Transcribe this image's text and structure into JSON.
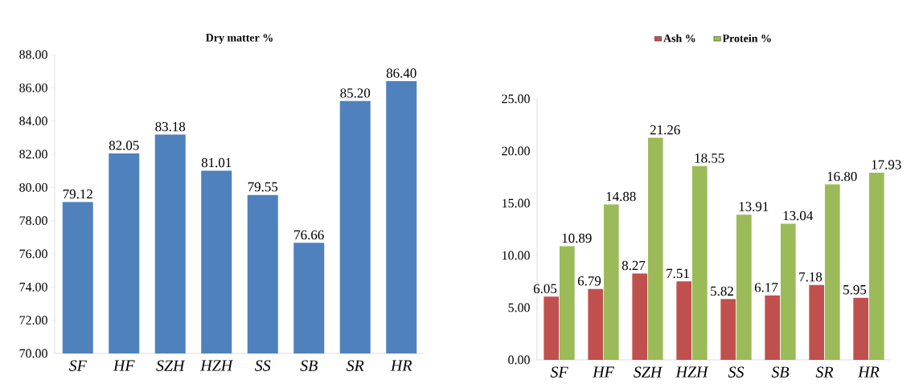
{
  "chart_data": [
    {
      "type": "bar",
      "title": "Dry matter %",
      "categories": [
        "SF",
        "HF",
        "SZH",
        "HZH",
        "SS",
        "SB",
        "SR",
        "HR"
      ],
      "values": [
        79.12,
        82.05,
        83.18,
        81.01,
        79.55,
        76.66,
        85.2,
        86.4
      ],
      "value_labels": [
        "79.12",
        "82.05",
        "83.18",
        "81.01",
        "79.55",
        "76.66",
        "85.20",
        "86.40"
      ],
      "color": "#4f81bd",
      "ylim": [
        70,
        88
      ],
      "yticks": [
        {
          "value": 70,
          "label": "70.00"
        },
        {
          "value": 72,
          "label": "72.00"
        },
        {
          "value": 74,
          "label": "74.00"
        },
        {
          "value": 76,
          "label": "76.00"
        },
        {
          "value": 78,
          "label": "78.00"
        },
        {
          "value": 80,
          "label": "80.00"
        },
        {
          "value": 82,
          "label": "82.00"
        },
        {
          "value": 84,
          "label": "84.00"
        },
        {
          "value": 86,
          "label": "86.00"
        },
        {
          "value": 88,
          "label": "88.00"
        }
      ]
    },
    {
      "type": "bar",
      "categories": [
        "SF",
        "HF",
        "SZH",
        "HZH",
        "SS",
        "SB",
        "SR",
        "HR"
      ],
      "legend": "top",
      "series": [
        {
          "name": "Ash %",
          "color": "#c0504d",
          "values": [
            6.05,
            6.79,
            8.27,
            7.51,
            5.82,
            6.17,
            7.18,
            5.95
          ],
          "value_labels": [
            "6.05",
            "6.79",
            "8.27",
            "7.51",
            "5.82",
            "6.17",
            "7.18",
            "5.95"
          ]
        },
        {
          "name": "Protein %",
          "color": "#9bbb59",
          "values": [
            10.89,
            14.88,
            21.26,
            18.55,
            13.91,
            13.04,
            16.8,
            17.93
          ],
          "value_labels": [
            "10.89",
            "14.88",
            "21.26",
            "18.55",
            "13.91",
            "13.04",
            "16.80",
            "17.93"
          ]
        }
      ],
      "ylim": [
        0,
        25
      ],
      "yticks": [
        {
          "value": 0,
          "label": "0.00"
        },
        {
          "value": 5,
          "label": "5.00"
        },
        {
          "value": 10,
          "label": "10.00"
        },
        {
          "value": 15,
          "label": "15.00"
        },
        {
          "value": 20,
          "label": "20.00"
        },
        {
          "value": 25,
          "label": "25.00"
        }
      ]
    }
  ]
}
